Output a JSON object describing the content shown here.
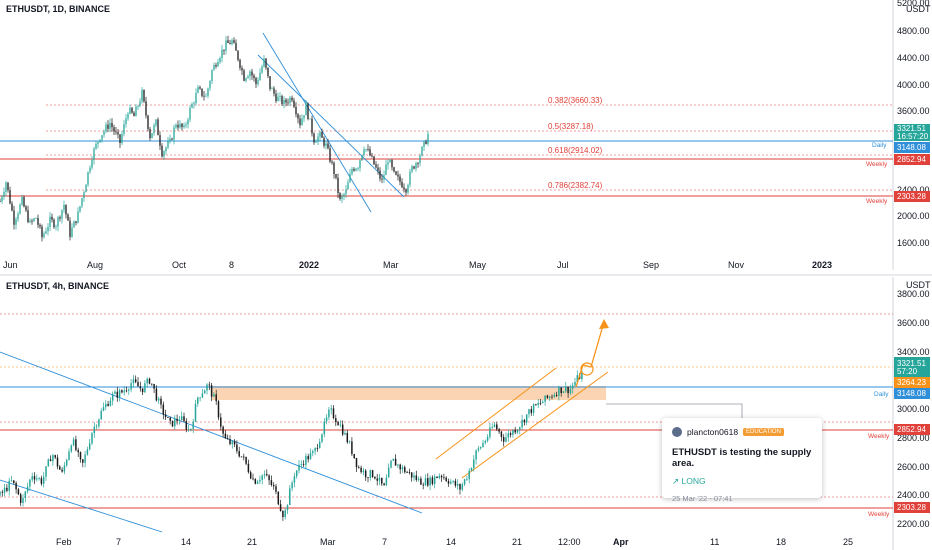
{
  "colors": {
    "up": "#26a69a",
    "down": "#1b1b1b",
    "fib": "#e0413a",
    "trend": "#2f8fd8",
    "orange": "#f7931a",
    "zone": "#f9c79a",
    "daily": "#2f8fd8",
    "weekly": "#e0413a",
    "price": "#26a69a"
  },
  "top_chart": {
    "title": "ETHUSDT, 1D, BINANCE",
    "currency": "USDT",
    "y_ticks": [
      "5200.00",
      "4800.00",
      "4400.00",
      "4000.00",
      "3600.00",
      "2400.00",
      "2000.00",
      "1600.00"
    ],
    "x_ticks": [
      "Jun",
      "Aug",
      "Oct",
      "8",
      "2022",
      "Mar",
      "May",
      "Jul",
      "Sep",
      "Nov",
      "2023"
    ],
    "fib_labels": [
      "0.382(3660.33)",
      "0.5(3287.18)",
      "0.618(2914.02)",
      "0.786(2382.74)"
    ],
    "line_labels": {
      "daily": "Daily",
      "weekly1": "Weekly",
      "weekly2": "Weekly"
    },
    "price_tags": {
      "last": "3321.51",
      "countdown": "16:57:20",
      "daily": "3148.08",
      "weekly_a": "2852.94",
      "weekly_b": "2303.28"
    }
  },
  "bottom_chart": {
    "title": "ETHUSDT, 4h, BINANCE",
    "currency": "USDT",
    "y_ticks": [
      "3800.00",
      "3600.00",
      "3400.00",
      "3000.00",
      "2800.00",
      "2600.00",
      "2400.00",
      "2200.00"
    ],
    "x_ticks": [
      "Feb",
      "7",
      "14",
      "21",
      "Mar",
      "7",
      "14",
      "21",
      "12:00",
      "Apr",
      "11",
      "18",
      "25"
    ],
    "line_labels": {
      "daily": "Daily",
      "weekly1": "Weekly",
      "weekly2": "Weekly"
    },
    "price_tags": {
      "last": "3321.51",
      "countdown": "57:20",
      "zone": "3264.23",
      "daily": "3148.08",
      "weekly_a": "2852.94",
      "weekly_b": "2303.28"
    }
  },
  "idea": {
    "author": "plancton0618",
    "badge": "EDUCATION",
    "headline": "ETHUSDT is testing the supply area.",
    "direction": "LONG",
    "timestamp": "25 Mar '22 - 07:41"
  },
  "chart_data": [
    {
      "type": "candlestick",
      "title": "ETHUSDT, 1D, BINANCE",
      "ylabel": "USDT",
      "ylim": [
        1400,
        5200
      ],
      "x_ticks": [
        "Jun",
        "Aug",
        "Oct",
        "8",
        "2022",
        "Mar",
        "May",
        "Jul",
        "Sep",
        "Nov",
        "2023"
      ],
      "fib_levels": [
        {
          "ratio": 0.382,
          "price": 3660.33
        },
        {
          "ratio": 0.5,
          "price": 3287.18
        },
        {
          "ratio": 0.618,
          "price": 2914.02
        },
        {
          "ratio": 0.786,
          "price": 2382.74
        }
      ],
      "horizontal_levels": [
        {
          "name": "Daily",
          "price": 3148.08
        },
        {
          "name": "Weekly",
          "price": 2852.94
        },
        {
          "name": "Weekly",
          "price": 2303.28
        }
      ],
      "last_price": 3321.51,
      "path": [
        [
          0,
          2300
        ],
        [
          6,
          2600
        ],
        [
          14,
          2000
        ],
        [
          22,
          2300
        ],
        [
          30,
          1950
        ],
        [
          36,
          2050
        ],
        [
          42,
          1750
        ],
        [
          50,
          2000
        ],
        [
          56,
          1950
        ],
        [
          64,
          2250
        ],
        [
          70,
          1800
        ],
        [
          78,
          2100
        ],
        [
          86,
          2600
        ],
        [
          92,
          3000
        ],
        [
          100,
          3300
        ],
        [
          110,
          3500
        ],
        [
          120,
          3200
        ],
        [
          128,
          3700
        ],
        [
          134,
          3600
        ],
        [
          142,
          3950
        ],
        [
          150,
          3300
        ],
        [
          156,
          3500
        ],
        [
          162,
          3050
        ],
        [
          170,
          3200
        ],
        [
          176,
          3500
        ],
        [
          184,
          3400
        ],
        [
          190,
          3700
        ],
        [
          198,
          4000
        ],
        [
          206,
          3900
        ],
        [
          212,
          4300
        ],
        [
          218,
          4500
        ],
        [
          226,
          4700
        ],
        [
          232,
          4750
        ],
        [
          238,
          4500
        ],
        [
          244,
          4200
        ],
        [
          250,
          4300
        ],
        [
          256,
          4100
        ],
        [
          264,
          4450
        ],
        [
          270,
          4050
        ],
        [
          276,
          3900
        ],
        [
          284,
          3800
        ],
        [
          292,
          3900
        ],
        [
          300,
          3500
        ],
        [
          306,
          3750
        ],
        [
          314,
          3250
        ],
        [
          320,
          3300
        ],
        [
          326,
          3150
        ],
        [
          334,
          2750
        ],
        [
          340,
          2300
        ],
        [
          346,
          2450
        ],
        [
          352,
          2800
        ],
        [
          358,
          2850
        ],
        [
          364,
          3150
        ],
        [
          370,
          3000
        ],
        [
          376,
          2800
        ],
        [
          382,
          2600
        ],
        [
          388,
          2950
        ],
        [
          394,
          2700
        ],
        [
          400,
          2600
        ],
        [
          406,
          2500
        ],
        [
          412,
          2800
        ],
        [
          418,
          2950
        ],
        [
          424,
          3150
        ],
        [
          428,
          3320
        ]
      ]
    },
    {
      "type": "candlestick",
      "title": "ETHUSDT, 4h, BINANCE",
      "ylabel": "USDT",
      "ylim": [
        2150,
        3900
      ],
      "x_ticks": [
        "Feb",
        "7",
        "14",
        "21",
        "Mar",
        "7",
        "14",
        "21",
        "12:00",
        "Apr",
        "11",
        "18",
        "25"
      ],
      "horizontal_levels": [
        {
          "name": "Daily",
          "price": 3148.08
        },
        {
          "name": "Weekly",
          "price": 2852.94
        },
        {
          "name": "Weekly",
          "price": 2303.28
        }
      ],
      "supply_zone": {
        "low": 3148.08,
        "high": 3264.23
      },
      "last_price": 3321.51,
      "path": [
        [
          0,
          2450
        ],
        [
          12,
          2550
        ],
        [
          22,
          2400
        ],
        [
          32,
          2600
        ],
        [
          42,
          2550
        ],
        [
          52,
          2750
        ],
        [
          62,
          2600
        ],
        [
          72,
          2850
        ],
        [
          82,
          2650
        ],
        [
          92,
          2900
        ],
        [
          102,
          3050
        ],
        [
          112,
          3150
        ],
        [
          122,
          3180
        ],
        [
          132,
          3250
        ],
        [
          142,
          3200
        ],
        [
          150,
          3270
        ],
        [
          160,
          3080
        ],
        [
          170,
          2950
        ],
        [
          180,
          3000
        ],
        [
          190,
          2900
        ],
        [
          198,
          3150
        ],
        [
          208,
          3230
        ],
        [
          216,
          3100
        ],
        [
          224,
          2850
        ],
        [
          234,
          2800
        ],
        [
          244,
          2700
        ],
        [
          254,
          2550
        ],
        [
          264,
          2600
        ],
        [
          274,
          2500
        ],
        [
          284,
          2300
        ],
        [
          294,
          2600
        ],
        [
          304,
          2700
        ],
        [
          314,
          2750
        ],
        [
          322,
          2900
        ],
        [
          330,
          3050
        ],
        [
          340,
          2950
        ],
        [
          350,
          2800
        ],
        [
          358,
          2650
        ],
        [
          366,
          2600
        ],
        [
          374,
          2600
        ],
        [
          384,
          2500
        ],
        [
          392,
          2700
        ],
        [
          400,
          2650
        ],
        [
          410,
          2600
        ],
        [
          420,
          2550
        ],
        [
          430,
          2550
        ],
        [
          440,
          2600
        ],
        [
          450,
          2550
        ],
        [
          460,
          2500
        ],
        [
          468,
          2600
        ],
        [
          476,
          2750
        ],
        [
          486,
          2850
        ],
        [
          494,
          2950
        ],
        [
          504,
          2850
        ],
        [
          512,
          2900
        ],
        [
          520,
          2950
        ],
        [
          530,
          3050
        ],
        [
          540,
          3100
        ],
        [
          550,
          3150
        ],
        [
          560,
          3200
        ],
        [
          570,
          3200
        ],
        [
          578,
          3280
        ],
        [
          584,
          3320
        ]
      ]
    }
  ]
}
